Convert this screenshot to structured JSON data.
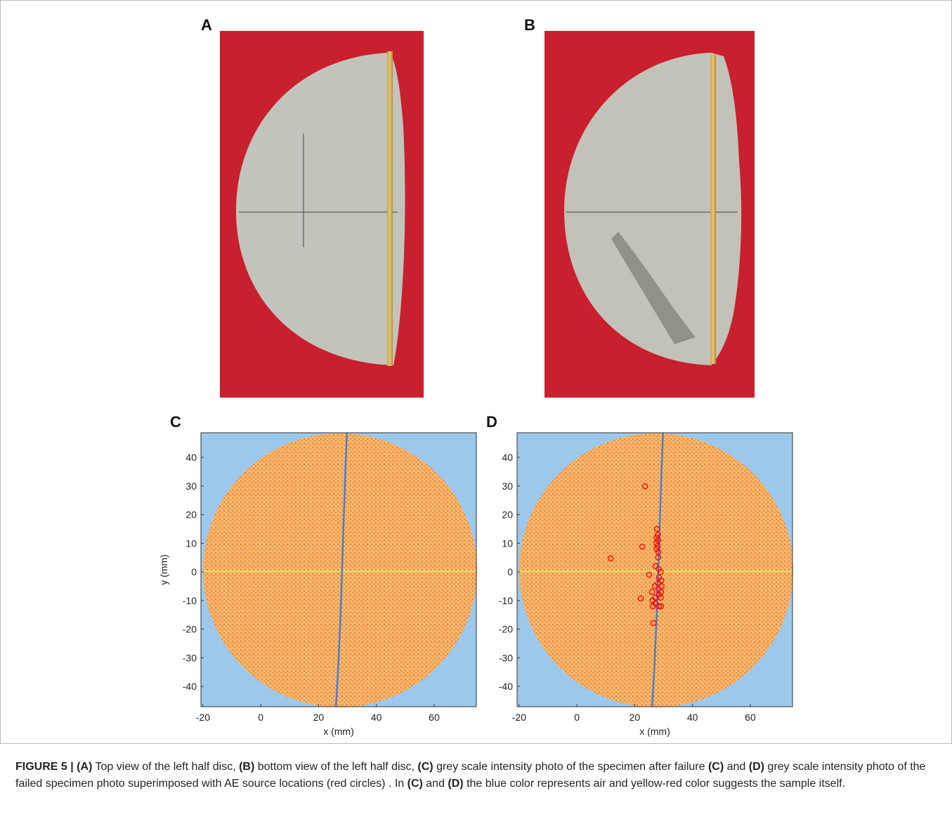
{
  "panels": [
    {
      "label": "A"
    },
    {
      "label": "B"
    }
  ],
  "chart_data": [
    {
      "type": "scatter",
      "label": "C",
      "x_label": "x (mm)",
      "y_label": "y (mm)",
      "xlim": [
        -20.7,
        74.6
      ],
      "ylim": [
        -47.1,
        48.6
      ],
      "xticks": [
        -20,
        0,
        20,
        40,
        60
      ],
      "yticks": [
        -40,
        -30,
        -20,
        -10,
        0,
        10,
        20,
        30,
        40
      ]
    },
    {
      "type": "scatter",
      "label": "D",
      "x_label": "x (mm)",
      "color": "#ff0000",
      "xlim": [
        -20.7,
        74.6
      ],
      "ylim": [
        -47.1,
        48.6
      ],
      "xticks": [
        -20,
        0,
        20,
        40,
        60
      ],
      "yticks": [
        -40,
        -30,
        -20,
        -10,
        0,
        10,
        20,
        30,
        40
      ],
      "x": [
        23.6,
        27.7,
        28.0,
        27.6,
        28.1,
        27.5,
        28.0,
        27.6,
        28.2,
        22.6,
        11.7,
        28.1,
        27.2,
        28.3,
        29.0,
        25.0,
        28.4,
        29.2,
        28.1,
        27.0,
        29.3,
        28.2,
        29.1,
        26.0,
        28.3,
        27.1,
        29.0,
        26.2,
        22.1,
        27.2,
        28.4,
        29.1,
        26.3,
        26.5
      ],
      "y": [
        29.9,
        15.0,
        13.0,
        12.0,
        11.0,
        10.0,
        9.0,
        8.0,
        7.0,
        8.8,
        4.7,
        5.0,
        2.0,
        1.0,
        0.0,
        -1.0,
        -2.0,
        -3.0,
        -4.0,
        -5.0,
        -5.0,
        -6.0,
        -7.0,
        -7.0,
        -8.0,
        -9.0,
        -9.0,
        -10.0,
        -9.3,
        -11.0,
        -12.0,
        -12.0,
        -12.0,
        -17.9
      ]
    }
  ],
  "caption": [
    {
      "text": "FIGURE 5 | (A)",
      "bold": true
    },
    {
      "text": " Top view of the left half disc, ",
      "bold": false
    },
    {
      "text": "(B)",
      "bold": true
    },
    {
      "text": " bottom view of the left half disc, ",
      "bold": false
    },
    {
      "text": "(C)",
      "bold": true
    },
    {
      "text": " grey scale intensity photo of the specimen after failure ",
      "bold": false
    },
    {
      "text": "(C)",
      "bold": true
    },
    {
      "text": " and ",
      "bold": false
    },
    {
      "text": "(D)",
      "bold": true
    },
    {
      "text": " grey scale intensity photo of the failed specimen photo superimposed with AE source locations (red circles) . In ",
      "bold": false
    },
    {
      "text": "(C)",
      "bold": true
    },
    {
      "text": " and ",
      "bold": false
    },
    {
      "text": "(D)",
      "bold": true
    },
    {
      "text": " the blue color represents air and yellow-red color suggests the sample itself.",
      "bold": false
    }
  ]
}
